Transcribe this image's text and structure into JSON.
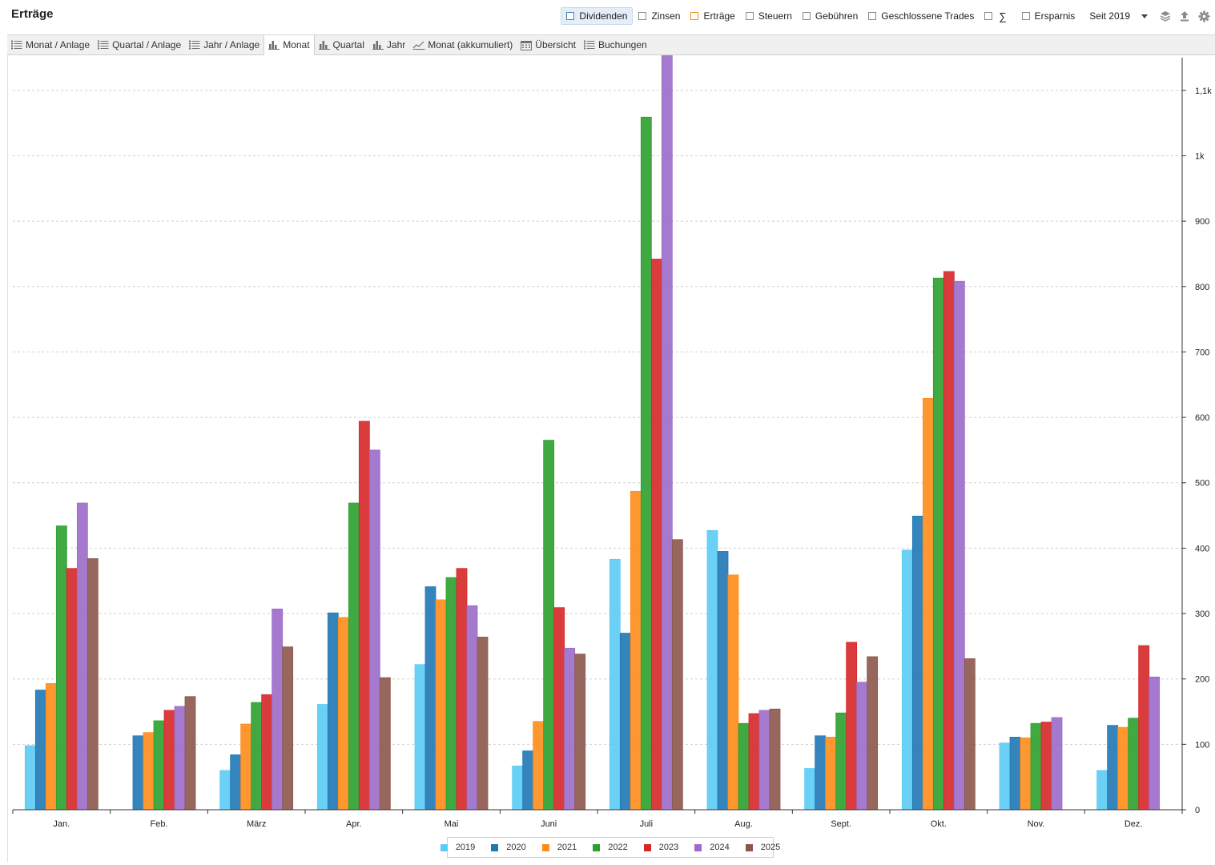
{
  "header": {
    "title": "Erträge"
  },
  "filters": [
    {
      "label": "Dividenden",
      "active": true,
      "box": "blue"
    },
    {
      "label": "Zinsen",
      "active": false,
      "box": ""
    },
    {
      "label": "Erträge",
      "active": false,
      "box": "orange"
    },
    {
      "label": "Steuern",
      "active": false,
      "box": ""
    },
    {
      "label": "Gebühren",
      "active": false,
      "box": ""
    },
    {
      "label": "Geschlossene Trades",
      "active": false,
      "box": ""
    },
    {
      "label": "∑",
      "active": false,
      "box": ""
    },
    {
      "label": "Ersparnis",
      "active": false,
      "box": ""
    }
  ],
  "period": {
    "value": "Seit 2019"
  },
  "toolbar_icons": [
    "layers-icon",
    "export-icon",
    "gear-icon"
  ],
  "tabs": [
    {
      "label": "Monat / Anlage",
      "icon": "list-icon",
      "active": false
    },
    {
      "label": "Quartal / Anlage",
      "icon": "list-icon",
      "active": false
    },
    {
      "label": "Jahr / Anlage",
      "icon": "list-icon",
      "active": false
    },
    {
      "label": "Monat",
      "icon": "bar-chart-icon",
      "active": true
    },
    {
      "label": "Quartal",
      "icon": "bar-chart-icon",
      "active": false
    },
    {
      "label": "Jahr",
      "icon": "bar-chart-icon",
      "active": false
    },
    {
      "label": "Monat (akkumuliert)",
      "icon": "line-chart-icon",
      "active": false
    },
    {
      "label": "Übersicht",
      "icon": "calendar-icon",
      "active": false
    },
    {
      "label": "Buchungen",
      "icon": "list-icon",
      "active": false
    }
  ],
  "chart_data": {
    "type": "bar",
    "categories": [
      "Jan.",
      "Feb.",
      "März",
      "Apr.",
      "Mai",
      "Juni",
      "Juli",
      "Aug.",
      "Sept.",
      "Okt.",
      "Nov.",
      "Dez."
    ],
    "series": [
      {
        "name": "2019",
        "color": "#5bcbf5",
        "values": [
          98,
          0,
          60,
          161,
          222,
          67,
          383,
          427,
          63,
          397,
          102,
          60
        ]
      },
      {
        "name": "2020",
        "color": "#1f77b4",
        "values": [
          183,
          113,
          84,
          301,
          341,
          90,
          270,
          395,
          113,
          449,
          111,
          129
        ]
      },
      {
        "name": "2021",
        "color": "#ff8c1a",
        "values": [
          193,
          118,
          131,
          294,
          321,
          135,
          487,
          359,
          111,
          629,
          110,
          126
        ]
      },
      {
        "name": "2022",
        "color": "#2ca02c",
        "values": [
          434,
          136,
          164,
          469,
          355,
          565,
          1059,
          132,
          148,
          813,
          132,
          140
        ]
      },
      {
        "name": "2023",
        "color": "#d62728",
        "values": [
          369,
          152,
          176,
          594,
          369,
          309,
          842,
          147,
          256,
          823,
          134,
          251
        ]
      },
      {
        "name": "2024",
        "color": "#9b6bc9",
        "values": [
          469,
          158,
          307,
          550,
          312,
          247,
          1153,
          152,
          195,
          808,
          141,
          203
        ]
      },
      {
        "name": "2025",
        "color": "#8c564b",
        "values": [
          384,
          173,
          249,
          202,
          264,
          238,
          413,
          154,
          234,
          231,
          0,
          0
        ]
      }
    ],
    "yticks": [
      0,
      100,
      200,
      300,
      400,
      500,
      600,
      700,
      800,
      900,
      1000,
      1100
    ],
    "ytick_labels": [
      "0",
      "100",
      "200",
      "300",
      "400",
      "500",
      "600",
      "700",
      "800",
      "900",
      "1k",
      "1,1k"
    ],
    "ylim": [
      0,
      1150
    ],
    "y_axis_side": "right",
    "grid": true,
    "legend_position": "bottom-center"
  }
}
